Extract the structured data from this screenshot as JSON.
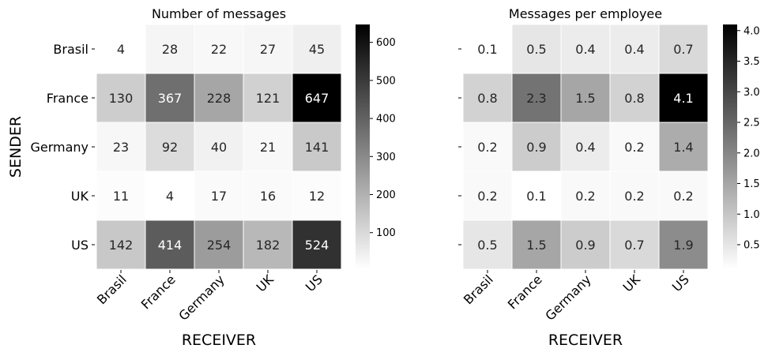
{
  "chart_data": [
    {
      "type": "heatmap",
      "title": "Number of messages",
      "xlabel": "RECEIVER",
      "ylabel": "SENDER",
      "x_categories": [
        "Brasil",
        "France",
        "Germany",
        "UK",
        "US"
      ],
      "y_categories": [
        "Brasil",
        "France",
        "Germany",
        "UK",
        "US"
      ],
      "values": [
        [
          4,
          28,
          22,
          27,
          45
        ],
        [
          130,
          367,
          228,
          121,
          647
        ],
        [
          23,
          92,
          40,
          21,
          141
        ],
        [
          11,
          4,
          17,
          16,
          12
        ],
        [
          142,
          414,
          254,
          182,
          524
        ]
      ],
      "value_labels": [
        [
          "4",
          "28",
          "22",
          "27",
          "45"
        ],
        [
          "130",
          "367",
          "228",
          "121",
          "647"
        ],
        [
          "23",
          "92",
          "40",
          "21",
          "141"
        ],
        [
          "11",
          "4",
          "17",
          "16",
          "12"
        ],
        [
          "142",
          "414",
          "254",
          "182",
          "524"
        ]
      ],
      "colorscale": "greys",
      "colorbar": {
        "vmin": 4,
        "vmax": 647,
        "ticks": [
          100,
          200,
          300,
          400,
          500,
          600
        ],
        "tick_labels": [
          "100",
          "200",
          "300",
          "400",
          "500",
          "600"
        ]
      }
    },
    {
      "type": "heatmap",
      "title": "Messages per employee",
      "xlabel": "RECEIVER",
      "ylabel": "",
      "x_categories": [
        "Brasil",
        "France",
        "Germany",
        "UK",
        "US"
      ],
      "y_categories": [
        "Brasil",
        "France",
        "Germany",
        "UK",
        "US"
      ],
      "show_y_tick_labels": false,
      "values": [
        [
          0.1,
          0.5,
          0.4,
          0.4,
          0.7
        ],
        [
          0.8,
          2.3,
          1.5,
          0.8,
          4.1
        ],
        [
          0.2,
          0.9,
          0.4,
          0.2,
          1.4
        ],
        [
          0.2,
          0.1,
          0.2,
          0.2,
          0.2
        ],
        [
          0.5,
          1.5,
          0.9,
          0.7,
          1.9
        ]
      ],
      "value_labels": [
        [
          "0.1",
          "0.5",
          "0.4",
          "0.4",
          "0.7"
        ],
        [
          "0.8",
          "2.3",
          "1.5",
          "0.8",
          "4.1"
        ],
        [
          "0.2",
          "0.9",
          "0.4",
          "0.2",
          "1.4"
        ],
        [
          "0.2",
          "0.1",
          "0.2",
          "0.2",
          "0.2"
        ],
        [
          "0.5",
          "1.5",
          "0.9",
          "0.7",
          "1.9"
        ]
      ],
      "colorscale": "greys",
      "colorbar": {
        "vmin": 0.1,
        "vmax": 4.1,
        "ticks": [
          0.5,
          1.0,
          1.5,
          2.0,
          2.5,
          3.0,
          3.5,
          4.0
        ],
        "tick_labels": [
          "0.5",
          "1.0",
          "1.5",
          "2.0",
          "2.5",
          "3.0",
          "3.5",
          "4.0"
        ]
      }
    }
  ]
}
